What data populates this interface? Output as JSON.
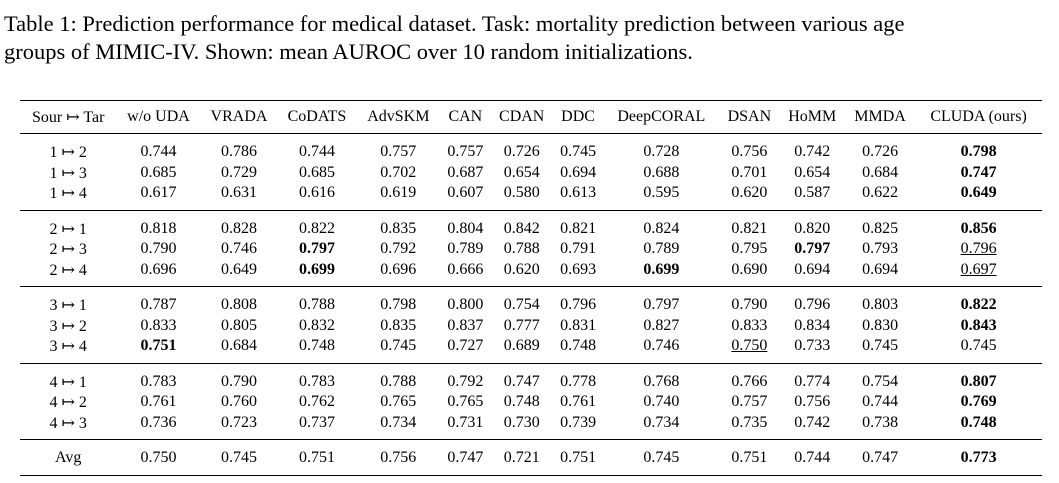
{
  "caption": {
    "lines": [
      "Table 1: Prediction performance for medical dataset. Task: mortality prediction between various age",
      "groups of MIMIC-IV. Shown: mean AUROC over 10 random initializations."
    ]
  },
  "table": {
    "header": [
      "Sour ↦ Tar",
      "w/o UDA",
      "VRADA",
      "CoDATS",
      "AdvSKM",
      "CAN",
      "CDAN",
      "DDC",
      "DeepCORAL",
      "DSAN",
      "HoMM",
      "MMDA",
      "CLUDA (ours)"
    ],
    "groups": [
      {
        "rows": [
          [
            "1 ↦ 2",
            "0.744",
            "0.786",
            "0.744",
            "0.757",
            "0.757",
            "0.726",
            "0.745",
            "0.728",
            "0.756",
            "0.742",
            "0.726",
            "0.798"
          ],
          [
            "1 ↦ 3",
            "0.685",
            "0.729",
            "0.685",
            "0.702",
            "0.687",
            "0.654",
            "0.694",
            "0.688",
            "0.701",
            "0.654",
            "0.684",
            "0.747"
          ],
          [
            "1 ↦ 4",
            "0.617",
            "0.631",
            "0.616",
            "0.619",
            "0.607",
            "0.580",
            "0.613",
            "0.595",
            "0.620",
            "0.587",
            "0.622",
            "0.649"
          ]
        ],
        "bold": [
          [
            0,
            12
          ],
          [
            1,
            12
          ],
          [
            2,
            12
          ]
        ],
        "underline": []
      },
      {
        "rows": [
          [
            "2 ↦ 1",
            "0.818",
            "0.828",
            "0.822",
            "0.835",
            "0.804",
            "0.842",
            "0.821",
            "0.824",
            "0.821",
            "0.820",
            "0.825",
            "0.856"
          ],
          [
            "2 ↦ 3",
            "0.790",
            "0.746",
            "0.797",
            "0.792",
            "0.789",
            "0.788",
            "0.791",
            "0.789",
            "0.795",
            "0.797",
            "0.793",
            "0.796"
          ],
          [
            "2 ↦ 4",
            "0.696",
            "0.649",
            "0.699",
            "0.696",
            "0.666",
            "0.620",
            "0.693",
            "0.699",
            "0.690",
            "0.694",
            "0.694",
            "0.697"
          ]
        ],
        "bold": [
          [
            0,
            12
          ],
          [
            1,
            3
          ],
          [
            1,
            10
          ],
          [
            2,
            3
          ],
          [
            2,
            8
          ]
        ],
        "underline": [
          [
            1,
            12
          ],
          [
            2,
            12
          ]
        ]
      },
      {
        "rows": [
          [
            "3 ↦ 1",
            "0.787",
            "0.808",
            "0.788",
            "0.798",
            "0.800",
            "0.754",
            "0.796",
            "0.797",
            "0.790",
            "0.796",
            "0.803",
            "0.822"
          ],
          [
            "3 ↦ 2",
            "0.833",
            "0.805",
            "0.832",
            "0.835",
            "0.837",
            "0.777",
            "0.831",
            "0.827",
            "0.833",
            "0.834",
            "0.830",
            "0.843"
          ],
          [
            "3 ↦ 4",
            "0.751",
            "0.684",
            "0.748",
            "0.745",
            "0.727",
            "0.689",
            "0.748",
            "0.746",
            "0.750",
            "0.733",
            "0.745",
            "0.745"
          ]
        ],
        "bold": [
          [
            0,
            12
          ],
          [
            1,
            12
          ],
          [
            2,
            1
          ]
        ],
        "underline": [
          [
            2,
            9
          ]
        ]
      },
      {
        "rows": [
          [
            "4 ↦ 1",
            "0.783",
            "0.790",
            "0.783",
            "0.788",
            "0.792",
            "0.747",
            "0.778",
            "0.768",
            "0.766",
            "0.774",
            "0.754",
            "0.807"
          ],
          [
            "4 ↦ 2",
            "0.761",
            "0.760",
            "0.762",
            "0.765",
            "0.765",
            "0.748",
            "0.761",
            "0.740",
            "0.757",
            "0.756",
            "0.744",
            "0.769"
          ],
          [
            "4 ↦ 3",
            "0.736",
            "0.723",
            "0.737",
            "0.734",
            "0.731",
            "0.730",
            "0.739",
            "0.734",
            "0.735",
            "0.742",
            "0.738",
            "0.748"
          ]
        ],
        "bold": [
          [
            0,
            12
          ],
          [
            1,
            12
          ],
          [
            2,
            12
          ]
        ],
        "underline": []
      },
      {
        "rows": [
          [
            "Avg",
            "0.750",
            "0.745",
            "0.751",
            "0.756",
            "0.747",
            "0.721",
            "0.751",
            "0.745",
            "0.751",
            "0.744",
            "0.747",
            "0.773"
          ]
        ],
        "bold": [
          [
            0,
            12
          ]
        ],
        "underline": []
      }
    ]
  }
}
